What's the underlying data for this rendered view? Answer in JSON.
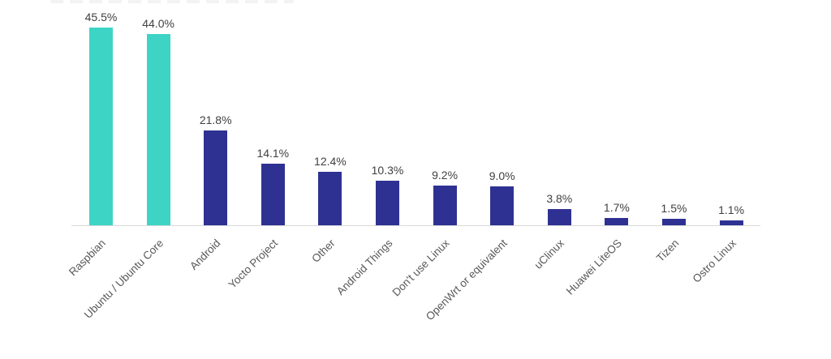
{
  "chart_data": {
    "type": "bar",
    "title": "",
    "xlabel": "",
    "ylabel": "",
    "categories": [
      "Raspbian",
      "Ubuntu / Ubuntu Core",
      "Android",
      "Yocto Project",
      "Other",
      "Android Things",
      "Don't use Linux",
      "OpenWrt or equivalent",
      "uClinux",
      "Huawei LiteOS",
      "Tizen",
      "Ostro Linux"
    ],
    "values": [
      45.5,
      44.0,
      21.8,
      14.1,
      12.4,
      10.3,
      9.2,
      9.0,
      3.8,
      1.7,
      1.5,
      1.1
    ],
    "value_labels": [
      "45.5%",
      "44.0%",
      "21.8%",
      "14.1%",
      "12.4%",
      "10.3%",
      "9.2%",
      "9.0%",
      "3.8%",
      "1.7%",
      "1.5%",
      "1.1%"
    ],
    "ylim": [
      0,
      50
    ],
    "grid": false,
    "legend": null,
    "highlight_count": 2,
    "category_label_rotation_deg": -45,
    "colors": {
      "highlight_bar": "#3DD4C6",
      "bar": "#2E3192",
      "axis_line": "#D9D9D9",
      "value_label": "#404040",
      "category_label": "#595959",
      "background": "#FFFFFF"
    }
  }
}
